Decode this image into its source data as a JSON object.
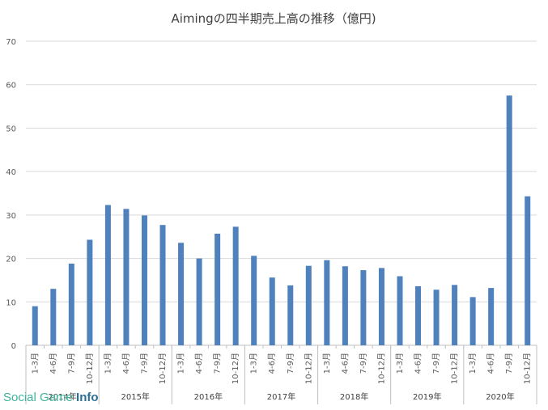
{
  "chart_data": {
    "type": "bar",
    "title": "Aimingの四半期売上高の推移（億円)",
    "ylim": [
      0,
      70
    ],
    "yticks": [
      0,
      10,
      20,
      30,
      40,
      50,
      60,
      70
    ],
    "grid": true,
    "color": "#4f81bd",
    "categories": [
      {
        "year": "2014年",
        "quarter": "1-3月",
        "value": 9
      },
      {
        "year": "2014年",
        "quarter": "4-6月",
        "value": 13
      },
      {
        "year": "2014年",
        "quarter": "7-9月",
        "value": 18.8
      },
      {
        "year": "2014年",
        "quarter": "10-12月",
        "value": 24.3
      },
      {
        "year": "2015年",
        "quarter": "1-3月",
        "value": 32.3
      },
      {
        "year": "2015年",
        "quarter": "4-6月",
        "value": 31.4
      },
      {
        "year": "2015年",
        "quarter": "7-9月",
        "value": 29.9
      },
      {
        "year": "2015年",
        "quarter": "10-12月",
        "value": 27.7
      },
      {
        "year": "2016年",
        "quarter": "1-3月",
        "value": 23.6
      },
      {
        "year": "2016年",
        "quarter": "4-6月",
        "value": 20
      },
      {
        "year": "2016年",
        "quarter": "7-9月",
        "value": 25.7
      },
      {
        "year": "2016年",
        "quarter": "10-12月",
        "value": 27.3
      },
      {
        "year": "2017年",
        "quarter": "1-3月",
        "value": 20.6
      },
      {
        "year": "2017年",
        "quarter": "4-6月",
        "value": 15.6
      },
      {
        "year": "2017年",
        "quarter": "7-9月",
        "value": 13.8
      },
      {
        "year": "2017年",
        "quarter": "10-12月",
        "value": 18.3
      },
      {
        "year": "2018年",
        "quarter": "1-3月",
        "value": 19.6
      },
      {
        "year": "2018年",
        "quarter": "4-6月",
        "value": 18.2
      },
      {
        "year": "2018年",
        "quarter": "7-9月",
        "value": 17.3
      },
      {
        "year": "2018年",
        "quarter": "10-12月",
        "value": 17.8
      },
      {
        "year": "2019年",
        "quarter": "1-3月",
        "value": 15.9
      },
      {
        "year": "2019年",
        "quarter": "4-6月",
        "value": 13.6
      },
      {
        "year": "2019年",
        "quarter": "7-9月",
        "value": 12.8
      },
      {
        "year": "2019年",
        "quarter": "10-12月",
        "value": 13.9
      },
      {
        "year": "2020年",
        "quarter": "1-3月",
        "value": 11.1
      },
      {
        "year": "2020年",
        "quarter": "4-6月",
        "value": 13.2
      },
      {
        "year": "2020年",
        "quarter": "7-9月",
        "value": 57.5
      },
      {
        "year": "2020年",
        "quarter": "10-12月",
        "value": 34.3
      }
    ]
  },
  "watermark": {
    "part1": "Social Game ",
    "part2": "Info"
  }
}
